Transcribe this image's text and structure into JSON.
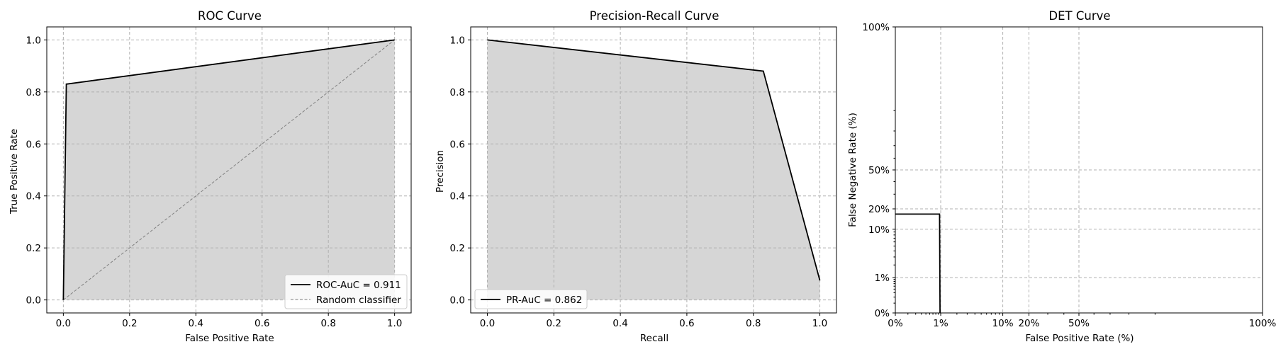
{
  "chart_data": [
    {
      "type": "area",
      "title": "ROC Curve",
      "xlabel": "False Positive Rate",
      "ylabel": "True Positive Rate",
      "xlim": [
        -0.05,
        1.05
      ],
      "ylim": [
        -0.05,
        1.05
      ],
      "xticks": [
        0.0,
        0.2,
        0.4,
        0.6,
        0.8,
        1.0
      ],
      "xtick_labels": [
        "0.0",
        "0.2",
        "0.4",
        "0.6",
        "0.8",
        "1.0"
      ],
      "yticks": [
        0.0,
        0.2,
        0.4,
        0.6,
        0.8,
        1.0
      ],
      "ytick_labels": [
        "0.0",
        "0.2",
        "0.4",
        "0.6",
        "0.8",
        "1.0"
      ],
      "grid": true,
      "legend_position": "lower-right",
      "fill_color": "#d6d6d6",
      "series": [
        {
          "name": "ROC-AuC = 0.911",
          "style": "solid",
          "color": "#000000",
          "x": [
            0.0,
            0.009,
            1.0
          ],
          "y": [
            0.0,
            0.83,
            1.0
          ],
          "filled": true
        },
        {
          "name": "Random classifier",
          "style": "dashed",
          "color": "#808080",
          "x": [
            0.0,
            1.0
          ],
          "y": [
            0.0,
            1.0
          ],
          "filled": false
        }
      ]
    },
    {
      "type": "area",
      "title": "Precision-Recall Curve",
      "xlabel": "Recall",
      "ylabel": "Precision",
      "xlim": [
        -0.05,
        1.05
      ],
      "ylim": [
        -0.05,
        1.05
      ],
      "xticks": [
        0.0,
        0.2,
        0.4,
        0.6,
        0.8,
        1.0
      ],
      "xtick_labels": [
        "0.0",
        "0.2",
        "0.4",
        "0.6",
        "0.8",
        "1.0"
      ],
      "yticks": [
        0.0,
        0.2,
        0.4,
        0.6,
        0.8,
        1.0
      ],
      "ytick_labels": [
        "0.0",
        "0.2",
        "0.4",
        "0.6",
        "0.8",
        "1.0"
      ],
      "grid": true,
      "legend_position": "lower-left",
      "fill_color": "#d6d6d6",
      "series": [
        {
          "name": "PR-AuC = 0.862",
          "style": "solid",
          "color": "#000000",
          "x": [
            0.0,
            0.83,
            1.0
          ],
          "y": [
            1.0,
            0.88,
            0.075
          ],
          "filled": true
        }
      ]
    },
    {
      "type": "line",
      "title": "DET Curve",
      "xlabel": "False Positive Rate (%)",
      "ylabel": "False Negative Rate (%)",
      "scale": "normal-deviate",
      "xticks": [
        0,
        1,
        10,
        20,
        50,
        100
      ],
      "xtick_labels": [
        "0%",
        "1%",
        "10%",
        "20%",
        "50%",
        "100%"
      ],
      "yticks": [
        0,
        1,
        10,
        20,
        50,
        100
      ],
      "ytick_labels": [
        "0%",
        "1%",
        "10%",
        "20%",
        "50%",
        "100%"
      ],
      "grid": true,
      "series": [
        {
          "style": "solid",
          "color": "#000000",
          "x": [
            0,
            0.95,
            0.97
          ],
          "y": [
            17,
            17,
            0
          ]
        }
      ]
    }
  ]
}
